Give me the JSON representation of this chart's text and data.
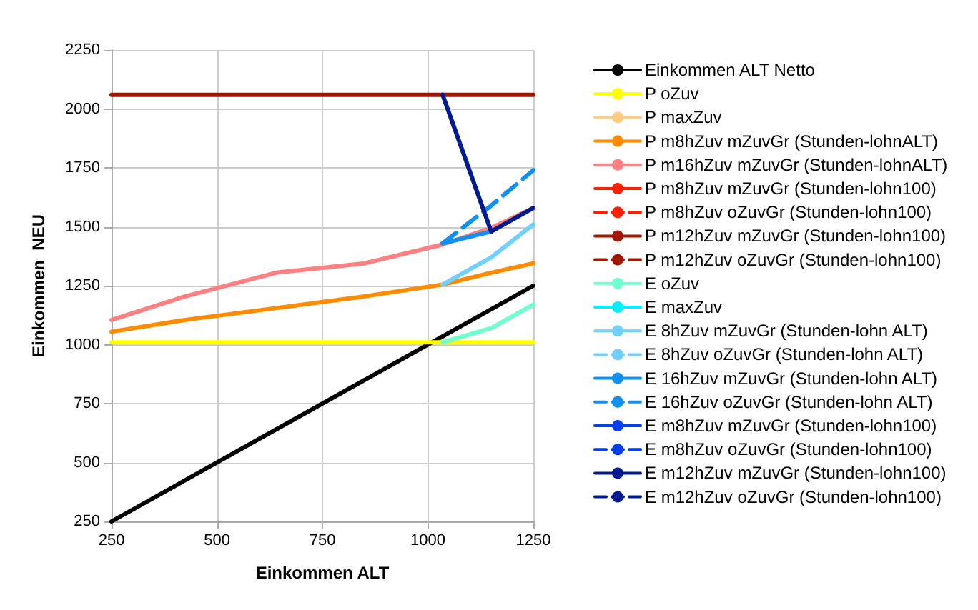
{
  "chart_data": {
    "type": "line",
    "xlabel": "Einkommen ALT",
    "ylabel": "Einkommen  NEU",
    "x": [
      250,
      425,
      640,
      850,
      1035,
      1150,
      1250
    ],
    "xlim": [
      250,
      1250
    ],
    "xticks": [
      250,
      500,
      750,
      1000,
      1250
    ],
    "ylim": [
      250,
      2250
    ],
    "yticks": [
      250,
      500,
      750,
      1000,
      1250,
      1500,
      1750,
      2000,
      2250
    ],
    "grid": true,
    "legend": "right",
    "marker": "none",
    "line_style": "solid",
    "series": [
      {
        "name": "Einkommen ALT Netto",
        "color": "#000000",
        "x": [
          250,
          1250
        ],
        "values": [
          250,
          1250
        ]
      },
      {
        "name": "P oZuv",
        "color": "#ffff00",
        "x": [
          250,
          1250
        ],
        "values": [
          1010,
          1010
        ]
      },
      {
        "name": "P maxZuv",
        "color": "#ffcc80",
        "values": [
          null,
          null,
          null,
          null,
          null,
          null,
          null
        ]
      },
      {
        "name": "P m8hZuv mZuvGr (Stunden-lohnALT)",
        "color": "#ff8c00",
        "values": [
          1055,
          1105,
          1155,
          1205,
          1255,
          1305,
          1345
        ]
      },
      {
        "name": "P m16hZuv mZuvGr (Stunden-lohnALT)",
        "color": "#ff8080",
        "values": [
          1105,
          1205,
          1305,
          1345,
          1425,
          1495,
          1580
        ]
      },
      {
        "name": "P m8hZuv mZuvGr (Stunden-lohn100)",
        "color": "#ff2000",
        "values": [
          null,
          null,
          null,
          null,
          null,
          null,
          null
        ]
      },
      {
        "name": "P m8hZuv oZuvGr (Stunden-lohn100)",
        "color": "#ff2000",
        "line_style": "dashed",
        "values": [
          null,
          null,
          null,
          null,
          null,
          null,
          null
        ]
      },
      {
        "name": "P m12hZuv mZuvGr (Stunden-lohn100)",
        "color": "#a01800",
        "x": [
          250,
          1250
        ],
        "values": [
          2060,
          2060
        ]
      },
      {
        "name": "P m12hZuv oZuvGr (Stunden-lohn100)",
        "color": "#a01800",
        "line_style": "dashed",
        "values": [
          null,
          null,
          null,
          null,
          null,
          null,
          null
        ]
      },
      {
        "name": "E oZuv",
        "color": "#70ffd0",
        "x": [
          1035,
          1150,
          1250
        ],
        "values": [
          1010,
          1070,
          1170
        ]
      },
      {
        "name": "E maxZuv",
        "color": "#00f0ff",
        "values": [
          null,
          null,
          null,
          null,
          null,
          null,
          null
        ]
      },
      {
        "name": "E 8hZuv mZuvGr (Stunden-lohn ALT)",
        "color": "#70d0ff",
        "x": [
          1035,
          1150,
          1250
        ],
        "values": [
          1255,
          1370,
          1510
        ]
      },
      {
        "name": "E 8hZuv oZuvGr (Stunden-lohn ALT)",
        "color": "#70d0ff",
        "line_style": "dashed",
        "values": [
          null,
          null,
          null,
          null,
          null,
          null,
          null
        ]
      },
      {
        "name": "E 16hZuv mZuvGr (Stunden-lohn ALT)",
        "color": "#1090f0",
        "x": [
          1035,
          1150
        ],
        "values": [
          1430,
          1480
        ]
      },
      {
        "name": "E 16hZuv oZuvGr (Stunden-lohn ALT)",
        "color": "#1090f0",
        "line_style": "dashed",
        "x": [
          1035,
          1150,
          1250
        ],
        "values": [
          1430,
          1590,
          1740
        ]
      },
      {
        "name": "E m8hZuv mZuvGr (Stunden-lohn100)",
        "color": "#0040f0",
        "values": [
          null,
          null,
          null,
          null,
          null,
          null,
          null
        ]
      },
      {
        "name": "E m8hZuv oZuvGr (Stunden-lohn100)",
        "color": "#0040f0",
        "line_style": "dashed",
        "values": [
          null,
          null,
          null,
          null,
          null,
          null,
          null
        ]
      },
      {
        "name": "E m12hZuv mZuvGr (Stunden-lohn100)",
        "color": "#001a90",
        "x": [
          1035,
          1150,
          1250
        ],
        "values": [
          2060,
          1480,
          1580
        ]
      },
      {
        "name": "E m12hZuv oZuvGr (Stunden-lohn100)",
        "color": "#001a90",
        "line_style": "dashed",
        "values": [
          null,
          null,
          null,
          null,
          null,
          null,
          null
        ]
      }
    ]
  }
}
